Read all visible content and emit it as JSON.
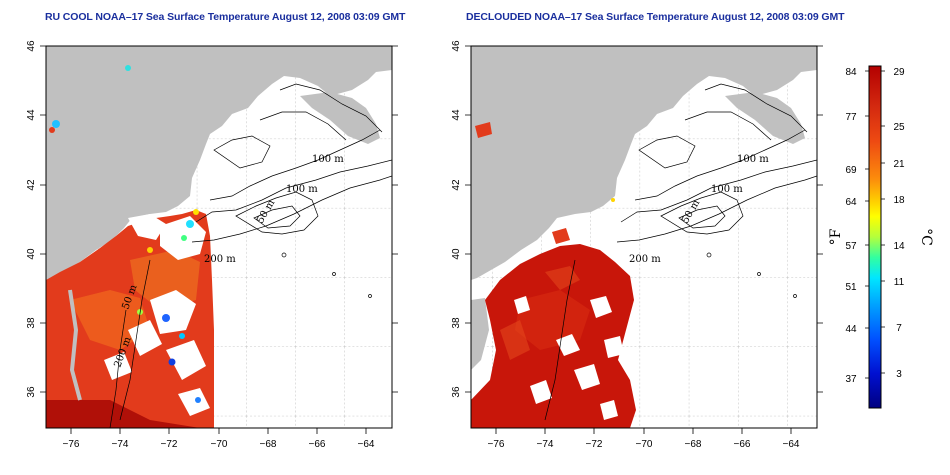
{
  "panels": [
    {
      "title": "RU COOL NOAA–17 Sea Surface Temperature August 12, 2008 03:09 GMT",
      "contour_labels": [
        "100 m",
        "100 m",
        "50 m",
        "200 m",
        "50 m",
        "200 m"
      ]
    },
    {
      "title": "DECLOUDED NOAA–17 Sea Surface Temperature August 12, 2008 03:09 GMT",
      "contour_labels": [
        "100 m",
        "100 m",
        "50 m",
        "200 m"
      ]
    }
  ],
  "axes": {
    "x_ticks": [
      "−76",
      "−74",
      "−72",
      "−70",
      "−68",
      "−66",
      "−64"
    ],
    "y_ticks": [
      "46",
      "44",
      "42",
      "40",
      "38",
      "36"
    ]
  },
  "colorbar": {
    "fahrenheit_unit": "°F",
    "celsius_unit": "°C",
    "fahrenheit_labels": [
      "84",
      "77",
      "69",
      "64",
      "57",
      "51",
      "44",
      "37"
    ],
    "celsius_labels": [
      "29",
      "25",
      "21",
      "18",
      "14",
      "11",
      "7",
      "3"
    ],
    "gradient_colors": [
      "#b30000",
      "#d42a10",
      "#ee4a12",
      "#fc8c0c",
      "#ffd400",
      "#ffff00",
      "#b4ff3c",
      "#32ffa0",
      "#00e6ff",
      "#00a0ff",
      "#0050ff",
      "#0010d0",
      "#000080"
    ]
  },
  "colors": {
    "land": "#c0c0c0",
    "title_text": "#1a2f9e",
    "sst_warm": "#e53a1a",
    "sst_hot": "#c41208"
  }
}
